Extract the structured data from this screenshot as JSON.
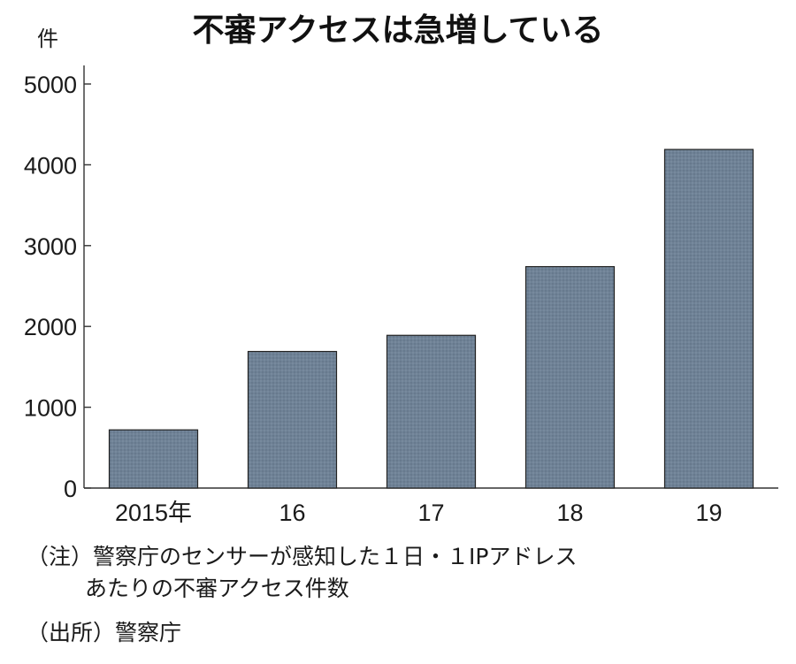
{
  "chart_data": {
    "type": "bar",
    "title": "不審アクセスは急増している",
    "ylabel": "件",
    "xlabel": "",
    "categories": [
      "2015年",
      "16",
      "17",
      "18",
      "19"
    ],
    "values": [
      720,
      1690,
      1890,
      2740,
      4190
    ],
    "ylim": [
      0,
      5000
    ],
    "yticks": [
      0,
      1000,
      2000,
      3000,
      4000,
      5000
    ],
    "grid": false,
    "bar_color": "#6f8296"
  },
  "notes": {
    "note_prefix": "（注）",
    "note_line1": "警察庁のセンサーが感知した１日・１IPアドレス",
    "note_line2": "あたりの不審アクセス件数",
    "source": "（出所）警察庁"
  }
}
